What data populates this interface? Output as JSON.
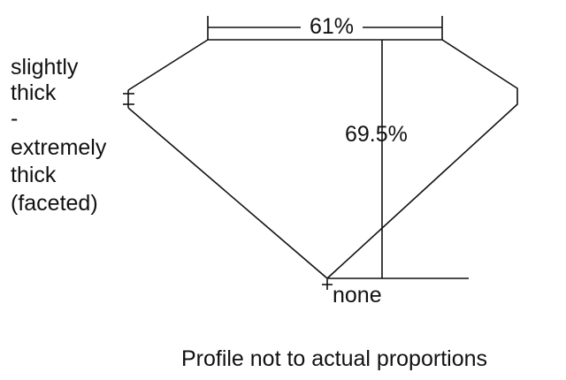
{
  "diagram": {
    "table_label": "61%",
    "depth_label": "69.5%",
    "girdle_label": [
      "slightly",
      "thick",
      "-",
      "extremely",
      "thick",
      "(faceted)"
    ],
    "culet_label": "none",
    "caption": "Profile not to actual proportions"
  }
}
